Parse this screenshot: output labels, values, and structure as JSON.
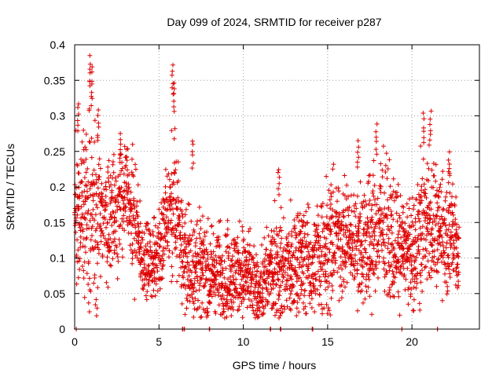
{
  "chart_data": {
    "type": "scatter",
    "title": "Day 099 of 2024, SRMTID for receiver p287",
    "xlabel": "GPS time / hours",
    "ylabel": "SRMTID / TECUs",
    "xlim": [
      0,
      24
    ],
    "ylim": [
      0,
      0.4
    ],
    "xticks": [
      0,
      5,
      10,
      15,
      20
    ],
    "xtick_labels": [
      "0",
      "5",
      "10",
      "15",
      "20"
    ],
    "yticks": [
      0,
      0.05,
      0.1,
      0.15,
      0.2,
      0.25,
      0.3,
      0.35,
      0.4
    ],
    "ytick_labels": [
      "0",
      "0.05",
      "0.1",
      "0.15",
      "0.2",
      "0.25",
      "0.3",
      "0.35",
      "0.4"
    ],
    "grid": true,
    "marker": "+",
    "series": [
      {
        "name": "SRMTID",
        "color": "#dd0000",
        "activity_envelope": {
          "hours": [
            0,
            0.5,
            1,
            1.5,
            2,
            2.5,
            3,
            3.5,
            4,
            4.5,
            5,
            5.5,
            6,
            6.5,
            7,
            7.5,
            8,
            8.5,
            9,
            9.5,
            10,
            10.5,
            11,
            11.5,
            12,
            12.5,
            13,
            13.5,
            14,
            14.5,
            15,
            15.5,
            16,
            16.5,
            17,
            17.5,
            18,
            18.5,
            19,
            19.5,
            20,
            20.5,
            21,
            21.5,
            22,
            22.5,
            22.8
          ],
          "typical": [
            0.17,
            0.16,
            0.17,
            0.15,
            0.16,
            0.17,
            0.19,
            0.15,
            0.1,
            0.09,
            0.11,
            0.15,
            0.17,
            0.1,
            0.09,
            0.09,
            0.08,
            0.08,
            0.07,
            0.08,
            0.08,
            0.06,
            0.05,
            0.08,
            0.09,
            0.08,
            0.09,
            0.1,
            0.09,
            0.1,
            0.12,
            0.13,
            0.13,
            0.12,
            0.12,
            0.13,
            0.14,
            0.14,
            0.12,
            0.12,
            0.1,
            0.14,
            0.16,
            0.14,
            0.13,
            0.14,
            0.1
          ],
          "spread": [
            0.05,
            0.06,
            0.1,
            0.05,
            0.05,
            0.05,
            0.05,
            0.05,
            0.03,
            0.03,
            0.04,
            0.05,
            0.07,
            0.04,
            0.05,
            0.04,
            0.04,
            0.04,
            0.04,
            0.04,
            0.04,
            0.04,
            0.03,
            0.04,
            0.05,
            0.05,
            0.05,
            0.05,
            0.04,
            0.05,
            0.06,
            0.05,
            0.05,
            0.04,
            0.05,
            0.06,
            0.05,
            0.06,
            0.05,
            0.04,
            0.04,
            0.07,
            0.06,
            0.05,
            0.05,
            0.05,
            0.04
          ]
        },
        "peaks": [
          {
            "x": 0.2,
            "y": 0.32
          },
          {
            "x": 0.9,
            "y": 0.385
          },
          {
            "x": 1.0,
            "y": 0.37
          },
          {
            "x": 1.4,
            "y": 0.31
          },
          {
            "x": 2.7,
            "y": 0.28
          },
          {
            "x": 5.8,
            "y": 0.375
          },
          {
            "x": 5.9,
            "y": 0.35
          },
          {
            "x": 7.0,
            "y": 0.27
          },
          {
            "x": 12.1,
            "y": 0.23
          },
          {
            "x": 16.8,
            "y": 0.27
          },
          {
            "x": 17.9,
            "y": 0.29
          },
          {
            "x": 20.7,
            "y": 0.305
          },
          {
            "x": 21.1,
            "y": 0.307
          },
          {
            "x": 22.2,
            "y": 0.25
          }
        ],
        "zero_points": [
          0.1,
          6.4,
          6.5,
          8.0,
          11.6,
          12.2,
          14.1,
          19.4,
          21.5
        ]
      }
    ]
  }
}
